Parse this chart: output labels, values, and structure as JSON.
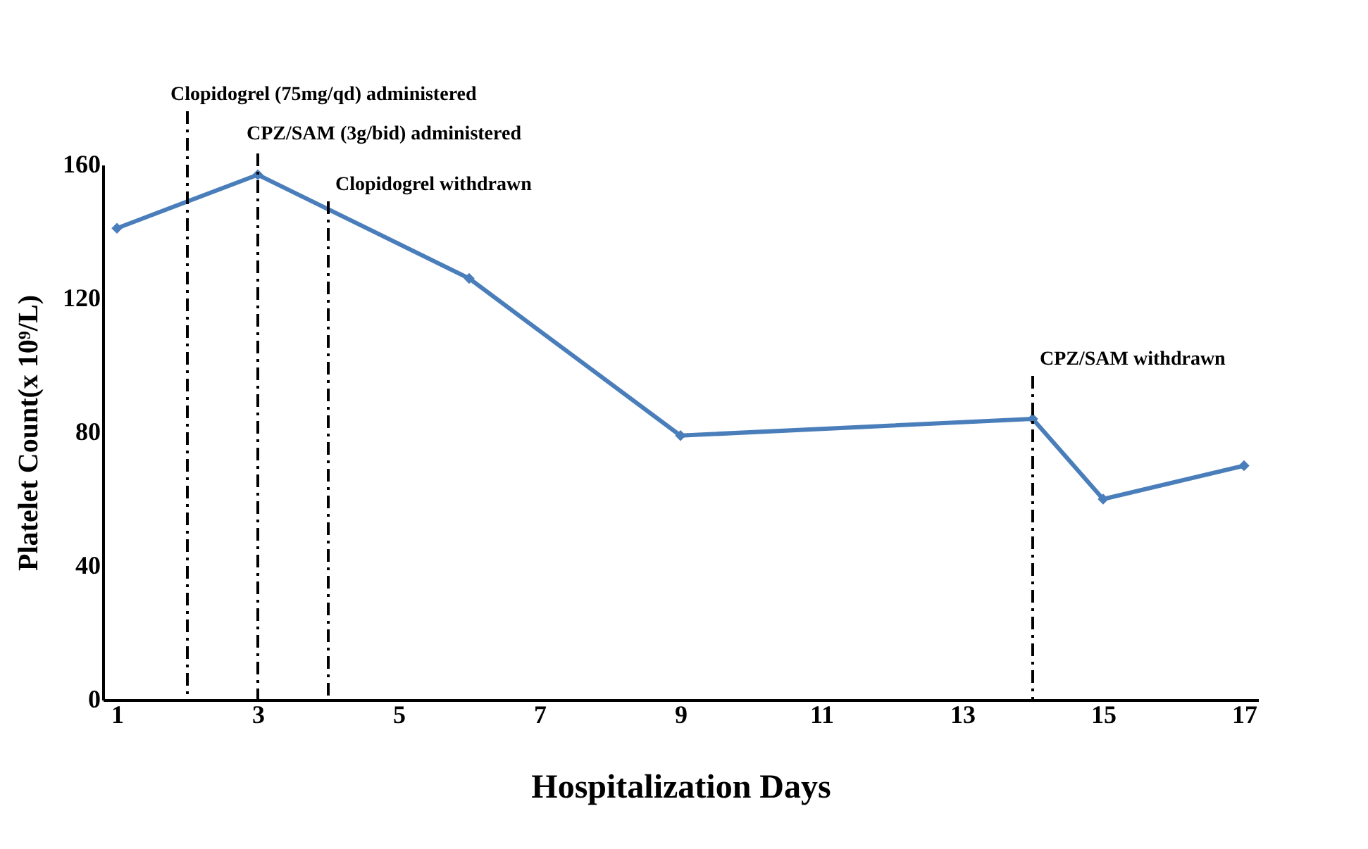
{
  "chart_data": {
    "type": "line",
    "xlabel": "Hospitalization Days",
    "ylabel": "Platelet Count(x 10⁹/L)",
    "x": [
      1,
      3,
      6,
      9,
      14,
      15,
      17
    ],
    "series": [
      {
        "color": "#4a7ebb",
        "values": [
          141,
          157,
          126,
          79,
          84,
          60,
          70
        ]
      }
    ],
    "xlim": [
      0.8,
      17.2
    ],
    "xticks": [
      1,
      3,
      5,
      7,
      9,
      11,
      13,
      15,
      17
    ],
    "ylim": [
      0,
      160
    ],
    "yticks": [
      0,
      40,
      80,
      120,
      160
    ],
    "grid": false,
    "marker": "diamond",
    "line_style": "solid",
    "ref_lines": [
      {
        "axis": "x",
        "value": 2,
        "label": "Clopidogrel (75mg/qd) administered",
        "color": "#000000",
        "line_style": "dashdot"
      },
      {
        "axis": "x",
        "value": 3,
        "label": "CPZ/SAM (3g/bid) administered",
        "color": "#000000",
        "line_style": "dashdot"
      },
      {
        "axis": "x",
        "value": 4,
        "label": "Clopidogrel withdrawn",
        "color": "#000000",
        "line_style": "dashdot"
      },
      {
        "axis": "x",
        "value": 14,
        "label": "CPZ/SAM withdrawn",
        "color": "#000000",
        "line_style": "dashdot"
      }
    ]
  }
}
